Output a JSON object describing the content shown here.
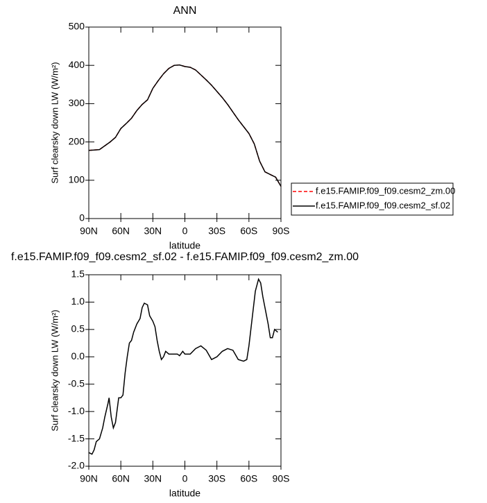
{
  "chart_data": [
    {
      "type": "line",
      "title": "ANN",
      "xlabel": "latitude",
      "ylabel": "Surf clearsky down LW (W/m²)",
      "x": [
        90,
        85,
        80,
        75,
        70,
        65,
        60,
        55,
        50,
        45,
        40,
        35,
        30,
        25,
        20,
        15,
        10,
        5,
        0,
        -5,
        -10,
        -15,
        -20,
        -25,
        -30,
        -35,
        -40,
        -45,
        -50,
        -55,
        -60,
        -65,
        -70,
        -75,
        -80,
        -85,
        -90
      ],
      "series": [
        {
          "name": "f.e15.FAMIP.f09_f09.cesm2_zm.00",
          "color": "#ff0000",
          "linestyle": "dashed",
          "values": [
            178,
            179,
            180,
            190,
            200,
            212,
            235,
            248,
            262,
            282,
            298,
            310,
            340,
            360,
            378,
            392,
            400,
            401,
            397,
            395,
            388,
            375,
            362,
            348,
            332,
            316,
            298,
            278,
            258,
            240,
            222,
            195,
            150,
            122,
            115,
            108,
            84
          ]
        },
        {
          "name": "f.e15.FAMIP.f09_f09.cesm2_sf.02",
          "color": "#000000",
          "linestyle": "solid",
          "values": [
            178,
            179,
            180,
            190,
            200,
            212,
            235,
            248,
            262,
            282,
            298,
            310,
            340,
            360,
            378,
            392,
            400,
            401,
            397,
            395,
            388,
            375,
            362,
            348,
            332,
            316,
            298,
            278,
            258,
            240,
            222,
            195,
            150,
            122,
            115,
            108,
            84
          ]
        }
      ],
      "xlim": [
        90,
        -90
      ],
      "xticks": [
        {
          "value": 90,
          "label": "90N"
        },
        {
          "value": 60,
          "label": "60N"
        },
        {
          "value": 30,
          "label": "30N"
        },
        0,
        {
          "value": -30,
          "label": "30S"
        },
        {
          "value": -60,
          "label": "60S"
        },
        {
          "value": -90,
          "label": "90S"
        }
      ],
      "ylim": [
        0,
        500
      ],
      "yticks": [
        0,
        100,
        200,
        300,
        400,
        500
      ],
      "legend": "right"
    },
    {
      "type": "line",
      "title": "f.e15.FAMIP.f09_f09.cesm2_sf.02 - f.e15.FAMIP.f09_f09.cesm2_zm.00",
      "xlabel": "latitude",
      "ylabel": "Surf clearsky down LW (W/m²)",
      "x": [
        90,
        87,
        85,
        83,
        80,
        77,
        75,
        72,
        71,
        69,
        67,
        65,
        63,
        62,
        60,
        58,
        56,
        54,
        52,
        50,
        48,
        45,
        42,
        40,
        38,
        35,
        33,
        30,
        28,
        26,
        24,
        22,
        20,
        18,
        15,
        10,
        7,
        5,
        2,
        0,
        -5,
        -10,
        -15,
        -20,
        -25,
        -30,
        -35,
        -40,
        -45,
        -50,
        -55,
        -58,
        -60,
        -63,
        -66,
        -69,
        -71,
        -73,
        -76,
        -78,
        -80,
        -82,
        -84,
        -87
      ],
      "series": [
        {
          "color": "#000000",
          "linestyle": "solid",
          "values": [
            -1.75,
            -1.78,
            -1.7,
            -1.55,
            -1.5,
            -1.3,
            -1.1,
            -0.85,
            -0.75,
            -1.1,
            -1.3,
            -1.2,
            -0.9,
            -0.75,
            -0.75,
            -0.7,
            -0.3,
            0.0,
            0.25,
            0.3,
            0.45,
            0.6,
            0.7,
            0.9,
            0.98,
            0.95,
            0.75,
            0.65,
            0.55,
            0.3,
            0.1,
            -0.05,
            0.0,
            0.1,
            0.05,
            0.05,
            0.05,
            0.02,
            0.1,
            0.05,
            0.05,
            0.15,
            0.2,
            0.12,
            -0.05,
            0.0,
            0.1,
            0.15,
            0.12,
            -0.05,
            -0.08,
            -0.05,
            0.2,
            0.7,
            1.2,
            1.42,
            1.35,
            1.1,
            0.8,
            0.6,
            0.35,
            0.35,
            0.5,
            0.45
          ]
        }
      ],
      "xlim": [
        90,
        -90
      ],
      "xticks": [
        {
          "value": 90,
          "label": "90N"
        },
        {
          "value": 60,
          "label": "60N"
        },
        {
          "value": 30,
          "label": "30N"
        },
        0,
        {
          "value": -30,
          "label": "30S"
        },
        {
          "value": -60,
          "label": "60S"
        },
        {
          "value": -90,
          "label": "90S"
        }
      ],
      "ylim": [
        -2.0,
        1.5
      ],
      "yticks": [
        {
          "value": -2.0,
          "label": "-2.0"
        },
        -1.5,
        {
          "value": -1.0,
          "label": "-1.0"
        },
        -0.5,
        {
          "value": 0.0,
          "label": "0.0"
        },
        0.5,
        {
          "value": 1.0,
          "label": "1.0"
        },
        1.5
      ]
    }
  ]
}
